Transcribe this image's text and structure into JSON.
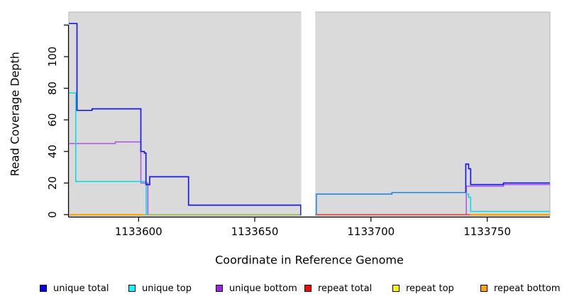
{
  "figure": {
    "background": "#FFFFFF",
    "panel_background": "#DADADA",
    "axis_color": "#000000"
  },
  "chart_data": {
    "type": "line",
    "subtype": "step-coverage",
    "title": "",
    "xlabel": "Coordinate in Reference Genome",
    "ylabel": "Read Coverage Depth",
    "xlim": [
      1133570,
      1133777
    ],
    "ylim": [
      0,
      128
    ],
    "x_ticks": [
      1133600,
      1133650,
      1133700,
      1133750
    ],
    "x_tick_labels": [
      "1133600",
      "1133650",
      "1133700",
      "1133750"
    ],
    "y_ticks": [
      0,
      20,
      40,
      60,
      80,
      100,
      120
    ],
    "y_tick_labels": [
      "0",
      "20",
      "40",
      "60",
      "80",
      "100",
      ""
    ],
    "grid": false,
    "legend_position": "bottom",
    "no_data_gap_x": [
      1133670,
      1133676
    ],
    "series": [
      {
        "name": "unique total",
        "color": "#1A1AEE",
        "width": 1.7,
        "parts": [
          {
            "points": [
              [
                1133570,
                121
              ],
              [
                1133573.5,
                121
              ],
              [
                1133573.5,
                66
              ],
              [
                1133580,
                66
              ],
              [
                1133580,
                67
              ],
              [
                1133601,
                67
              ],
              [
                1133601,
                40
              ],
              [
                1133602.5,
                40
              ],
              [
                1133602.5,
                39
              ],
              [
                1133603.2,
                39
              ],
              [
                1133603.2,
                19
              ],
              [
                1133604.8,
                19
              ],
              [
                1133604.8,
                24
              ],
              [
                1133621.5,
                24
              ],
              [
                1133621.5,
                6
              ],
              [
                1133669.8,
                6
              ],
              [
                1133669.8,
                0
              ],
              [
                1133670,
                0
              ]
            ]
          },
          {
            "color": "#2A8CF0",
            "points": [
              [
                1133676.5,
                0
              ],
              [
                1133676.5,
                13
              ],
              [
                1133709,
                13
              ],
              [
                1133709,
                14
              ],
              [
                1133740.8,
                14
              ]
            ]
          },
          {
            "points": [
              [
                1133740.8,
                14
              ],
              [
                1133740.8,
                32
              ],
              [
                1133742,
                32
              ],
              [
                1133742,
                29
              ],
              [
                1133742.9,
                29
              ],
              [
                1133742.9,
                19
              ],
              [
                1133757,
                19
              ],
              [
                1133757,
                20
              ],
              [
                1133777,
                20
              ]
            ]
          }
        ]
      },
      {
        "name": "unique top",
        "color": "#00DDE6",
        "width": 1.5,
        "parts": [
          {
            "points": [
              [
                1133570,
                77
              ],
              [
                1133573,
                77
              ],
              [
                1133573,
                21
              ],
              [
                1133603.3,
                21
              ],
              [
                1133603.3,
                0
              ]
            ]
          },
          {
            "points": [
              [
                1133741,
                13
              ],
              [
                1133742,
                13
              ],
              [
                1133742,
                11
              ],
              [
                1133742.9,
                11
              ],
              [
                1133742.9,
                2
              ],
              [
                1133777,
                2
              ]
            ]
          }
        ]
      },
      {
        "name": "unique bottom",
        "color": "#AA55E8",
        "width": 1.5,
        "parts": [
          {
            "points": [
              [
                1133570,
                45
              ],
              [
                1133590,
                45
              ],
              [
                1133590,
                46
              ],
              [
                1133601,
                46
              ],
              [
                1133601,
                20
              ],
              [
                1133604,
                20
              ],
              [
                1133604,
                0
              ]
            ]
          },
          {
            "points": [
              [
                1133741,
                0
              ],
              [
                1133741,
                18
              ],
              [
                1133757,
                18
              ],
              [
                1133757,
                19
              ],
              [
                1133777,
                19
              ]
            ]
          }
        ]
      },
      {
        "name": "repeat total",
        "color": "#E60000",
        "width": 1.4,
        "parts": [
          {
            "points": [
              [
                1133570,
                0
              ],
              [
                1133670,
                0
              ]
            ]
          },
          {
            "points": [
              [
                1133676,
                0
              ],
              [
                1133777,
                0
              ]
            ]
          }
        ]
      },
      {
        "name": "repeat top",
        "color": "#F0E000",
        "width": 1.4,
        "parts": [
          {
            "points": [
              [
                1133570,
                0
              ],
              [
                1133670,
                0
              ]
            ]
          },
          {
            "points": [
              [
                1133676,
                0
              ],
              [
                1133777,
                0
              ]
            ]
          }
        ]
      },
      {
        "name": "repeat bottom",
        "color": "#FFA500",
        "width": 2,
        "parts": [
          {
            "points": [
              [
                1133570,
                0
              ],
              [
                1133670,
                0
              ]
            ]
          },
          {
            "points": [
              [
                1133676,
                0
              ],
              [
                1133777,
                0
              ]
            ]
          }
        ]
      }
    ],
    "zero_line_rendered_segments": [
      {
        "x1": 1133570,
        "x2": 1133602,
        "color": "#FFA500",
        "width": 2
      },
      {
        "x1": 1133602,
        "x2": 1133670,
        "color": "#8FCF8F",
        "width": 1.6
      },
      {
        "x1": 1133676,
        "x2": 1133742.5,
        "color": "#D5507E",
        "width": 1.6
      },
      {
        "x1": 1133742.5,
        "x2": 1133777,
        "color": "#FFA500",
        "width": 2.2
      }
    ]
  },
  "legend": {
    "swatch_border": "#000000",
    "items": [
      {
        "label": "unique total",
        "color": "#0000FF"
      },
      {
        "label": "unique top",
        "color": "#00FFFF"
      },
      {
        "label": "unique bottom",
        "color": "#A020F0"
      },
      {
        "label": "repeat total",
        "color": "#FF0000"
      },
      {
        "label": "repeat top",
        "color": "#FFFF00"
      },
      {
        "label": "repeat bottom",
        "color": "#FFA500"
      }
    ]
  }
}
